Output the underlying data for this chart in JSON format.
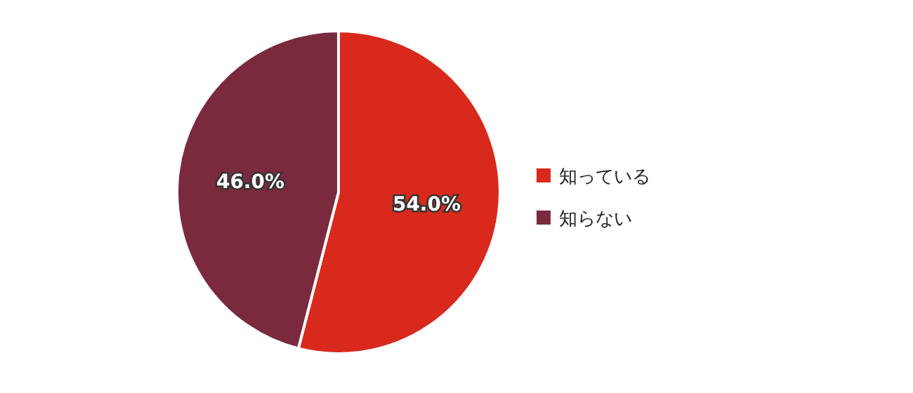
{
  "chart_data": {
    "type": "pie",
    "categories": [
      "知っている",
      "知らない"
    ],
    "values": [
      54.0,
      46.0
    ],
    "colors": [
      "#d9291c",
      "#7b2a3e"
    ],
    "value_labels": [
      "54.0%",
      "46.0%"
    ],
    "legend": "right"
  }
}
